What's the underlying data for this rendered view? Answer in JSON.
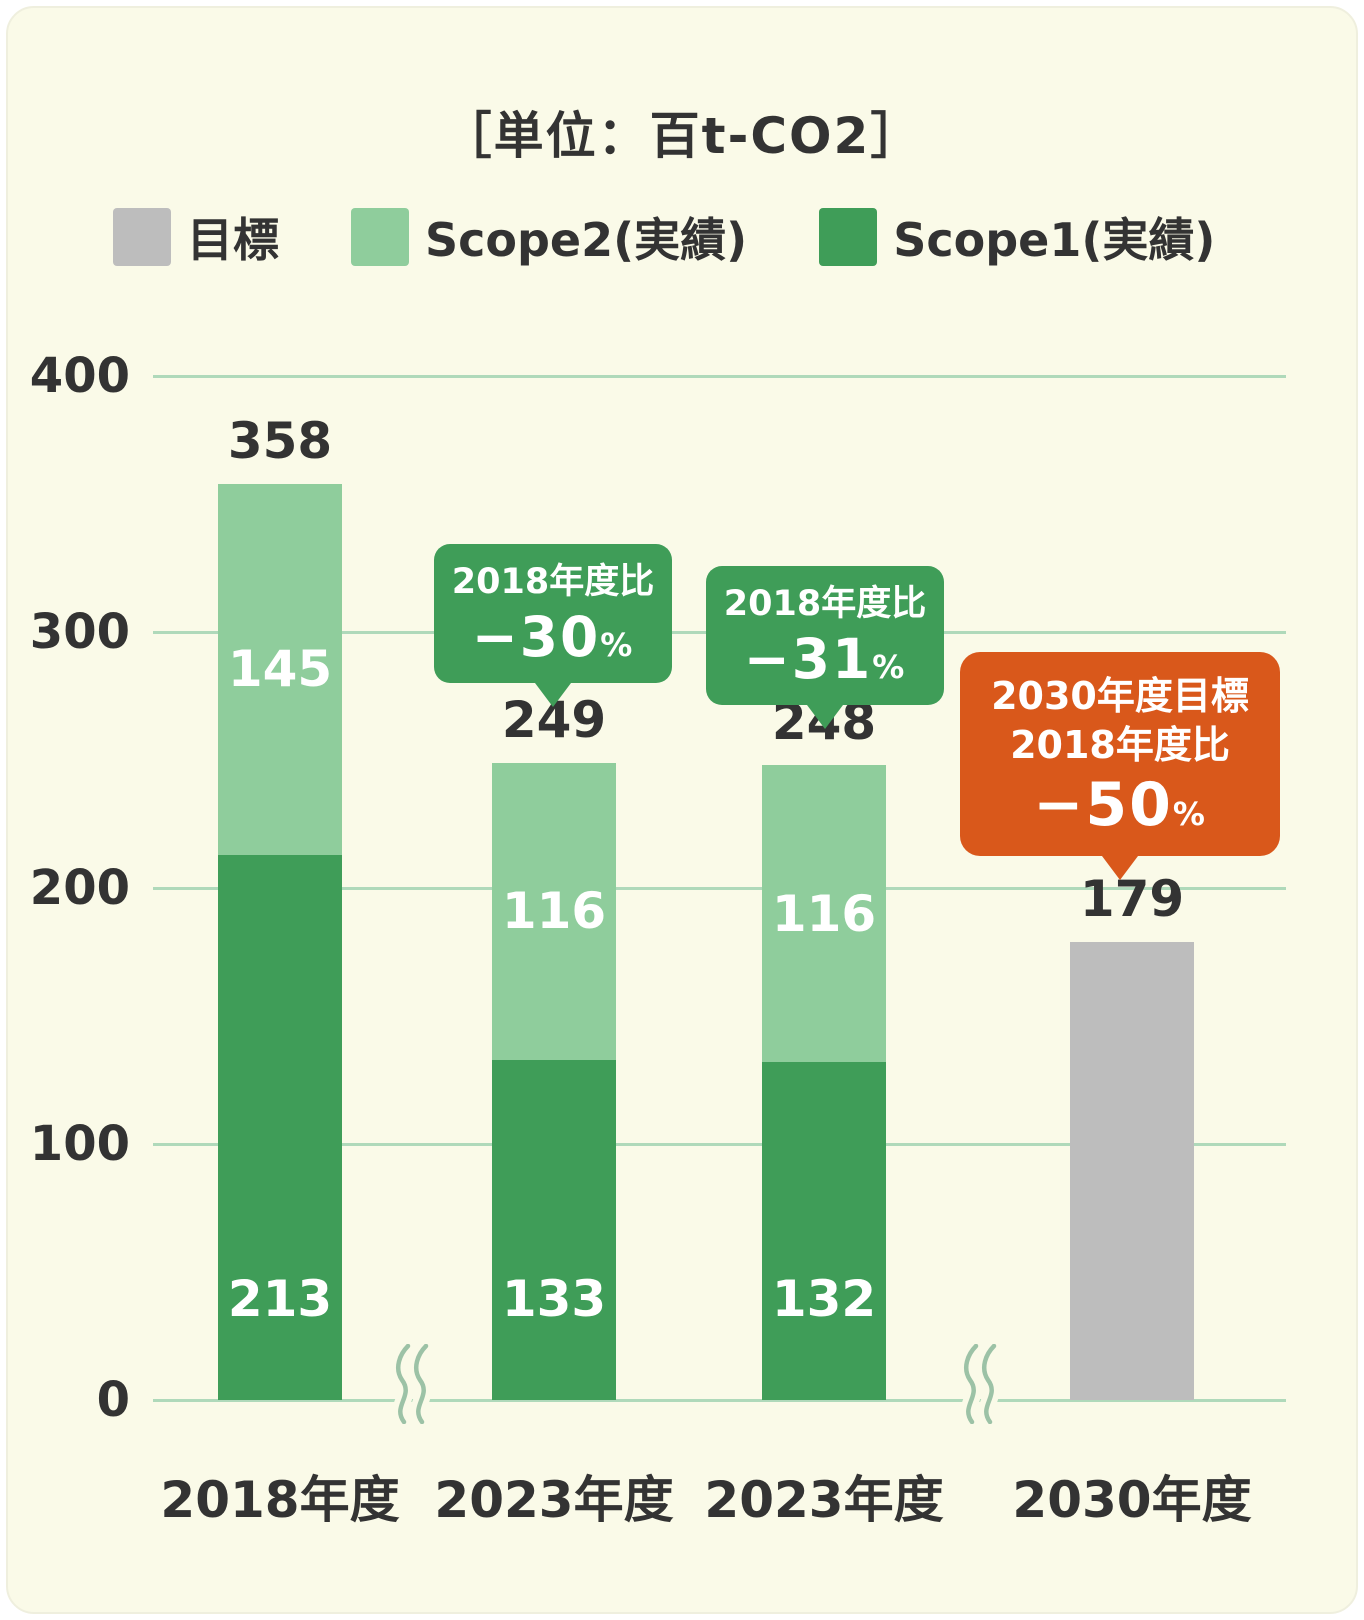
{
  "title": "［単位：百t-CO2］",
  "legend": [
    {
      "label": "目標",
      "key": "target"
    },
    {
      "label": "Scope2(実績)",
      "key": "scope2"
    },
    {
      "label": "Scope1(実績)",
      "key": "scope1"
    }
  ],
  "colors": {
    "scope1": "#3F9D58",
    "scope2": "#8FCD9C",
    "target": "#BDBDBD",
    "orange": "#D9581B",
    "grid": "#AFD9BA",
    "bg": "#FAFAE8",
    "text": "#333333",
    "axis_break": "#9CC2A6"
  },
  "chart_data": {
    "type": "bar",
    "stacked": true,
    "title": "［単位：百t-CO2］",
    "unit": "百t-CO2",
    "categories": [
      "2018年度",
      "2023年度",
      "2023年度",
      "2030年度"
    ],
    "series": [
      {
        "name": "Scope1(実績)",
        "key": "scope1",
        "values": [
          213,
          133,
          132,
          null
        ]
      },
      {
        "name": "Scope2(実績)",
        "key": "scope2",
        "values": [
          145,
          116,
          116,
          null
        ]
      },
      {
        "name": "目標",
        "key": "target",
        "values": [
          null,
          null,
          null,
          179
        ]
      }
    ],
    "totals": [
      358,
      249,
      248,
      179
    ],
    "ylim": [
      0,
      400
    ],
    "yticks": [
      0,
      100,
      200,
      300,
      400
    ],
    "grid": true,
    "legend_position": "top",
    "axis_breaks_between": [
      [
        0,
        1
      ],
      [
        2,
        3
      ]
    ]
  },
  "callouts": [
    {
      "lines": [
        "2018年度比"
      ],
      "value": "−30",
      "unit": "%",
      "style": "green",
      "target_bar": 1
    },
    {
      "lines": [
        "2018年度比"
      ],
      "value": "−31",
      "unit": "%",
      "style": "green",
      "target_bar": 2
    },
    {
      "lines": [
        "2030年度目標",
        "2018年度比"
      ],
      "value": "−50",
      "unit": "%",
      "style": "orange",
      "target_bar": 3
    }
  ]
}
